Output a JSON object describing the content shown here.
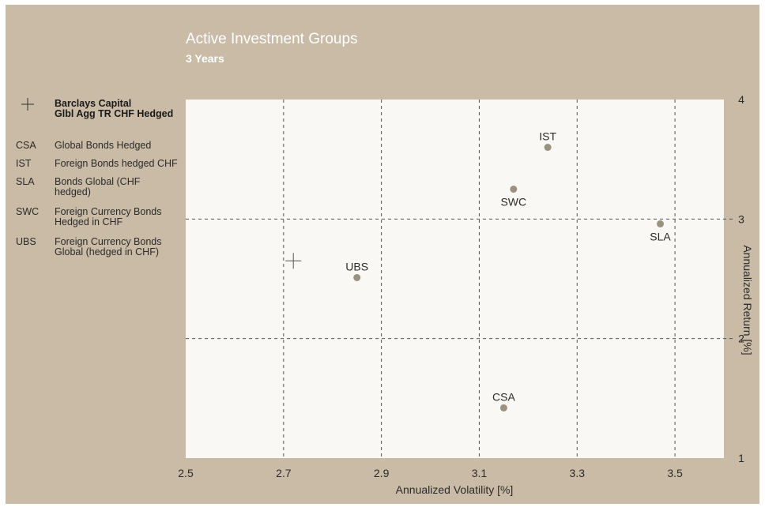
{
  "header": {
    "title": "Active Investment Groups",
    "subtitle": "3 Years"
  },
  "legend": {
    "benchmark": {
      "symbol": "+",
      "lines": [
        "Barclays Capital",
        "Glbl Agg TR CHF Hedged"
      ]
    },
    "items": [
      {
        "abbr": "CSA",
        "lines": [
          "Global Bonds Hedged"
        ]
      },
      {
        "abbr": "IST",
        "lines": [
          "Foreign Bonds hedged CHF"
        ]
      },
      {
        "abbr": "SLA",
        "lines": [
          "Bonds Global (CHF",
          "hedged)"
        ]
      },
      {
        "abbr": "SWC",
        "lines": [
          "Foreign Currency Bonds",
          "Hedged in CHF"
        ]
      },
      {
        "abbr": "UBS",
        "lines": [
          "Foreign Currency Bonds",
          "Global (hedged in CHF)"
        ]
      }
    ]
  },
  "chart_data": {
    "type": "scatter",
    "title": "Active Investment Groups",
    "subtitle": "3 Years",
    "xlabel": "Annualized Volatility [%]",
    "ylabel": "Annualized Return [%]",
    "xlim": [
      2.5,
      3.6
    ],
    "ylim": [
      1,
      4
    ],
    "xticks": [
      2.5,
      2.7,
      2.9,
      3.1,
      3.3,
      3.5
    ],
    "yticks": [
      1,
      2,
      3,
      4
    ],
    "x_gridlines": [
      2.7,
      2.9,
      3.1,
      3.3,
      3.5
    ],
    "y_gridlines": [
      2,
      3
    ],
    "grid": true,
    "points": [
      {
        "label": "IST",
        "x": 3.24,
        "y": 3.6
      },
      {
        "label": "SWC",
        "x": 3.17,
        "y": 3.25
      },
      {
        "label": "SLA",
        "x": 3.47,
        "y": 2.96
      },
      {
        "label": "UBS",
        "x": 2.85,
        "y": 2.51
      },
      {
        "label": "CSA",
        "x": 3.15,
        "y": 1.42
      }
    ],
    "benchmark": {
      "marker": "+",
      "x": 2.72,
      "y": 2.65
    }
  },
  "colors": {
    "panel": "#c9bba5",
    "plot_area": "#faf8f4",
    "point": "#9b9180",
    "grid": "#555555",
    "text": "#2b2b2b",
    "title": "#ffffff"
  }
}
